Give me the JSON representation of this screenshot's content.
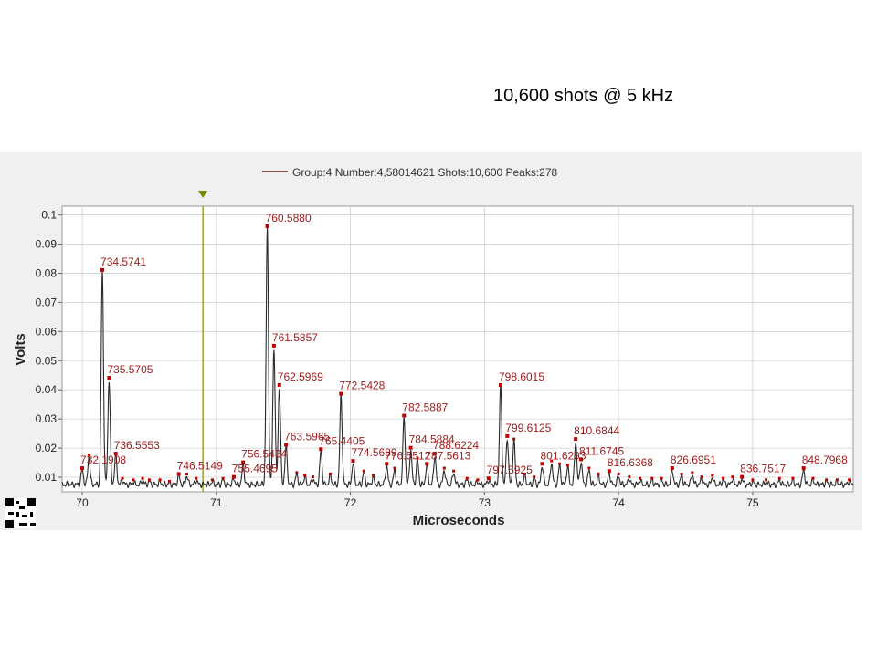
{
  "slide": {
    "title": "10,600 shots @ 5 kHz"
  },
  "legend": {
    "label": "Group:4 Number:4,58014621 Shots:10,600 Peaks:278"
  },
  "colors": {
    "trace": "#2b2b2b",
    "peak_label": "#9b1c1c",
    "marker": "#c00000",
    "cursor": "#8a8a00",
    "grid": "#d0d0d0",
    "panel": "#f0f0f0"
  },
  "icons": {
    "cursor_marker": "triangle-down-icon",
    "qr": "qr-code-icon"
  },
  "chart_data": {
    "type": "line",
    "xlabel": "Microseconds",
    "ylabel": "Volts",
    "xlim": [
      69.85,
      75.75
    ],
    "ylim": [
      0.005,
      0.103
    ],
    "x_ticks": [
      70,
      71,
      72,
      73,
      74,
      75
    ],
    "y_ticks": [
      0.01,
      0.02,
      0.03,
      0.04,
      0.05,
      0.06,
      0.07,
      0.08,
      0.09,
      0.1
    ],
    "y_tick_labels": [
      "0.01",
      "0.02",
      "0.03",
      "0.04",
      "0.05",
      "0.06",
      "0.07",
      "0.08",
      "0.09",
      "0.1"
    ],
    "grid": true,
    "cursor_x": 70.9,
    "baseline": 0.0075,
    "series": [
      {
        "peaks": [
          {
            "x": 70.0,
            "y": 0.0125,
            "label": "732.1908"
          },
          {
            "x": 70.15,
            "y": 0.0805,
            "label": "734.5741"
          },
          {
            "x": 70.2,
            "y": 0.0435,
            "label": "735.5705"
          },
          {
            "x": 70.25,
            "y": 0.0175,
            "label": "736.5553"
          },
          {
            "x": 70.72,
            "y": 0.0105,
            "label": "746.5149"
          },
          {
            "x": 71.13,
            "y": 0.0095,
            "label": "755.4695"
          },
          {
            "x": 71.2,
            "y": 0.0145,
            "label": "756.5434"
          },
          {
            "x": 71.38,
            "y": 0.0955,
            "label": "760.5880"
          },
          {
            "x": 71.43,
            "y": 0.0545,
            "label": "761.5857"
          },
          {
            "x": 71.47,
            "y": 0.041,
            "label": "762.5969"
          },
          {
            "x": 71.52,
            "y": 0.0205,
            "label": "763.5965"
          },
          {
            "x": 71.78,
            "y": 0.019,
            "label": "765.4405"
          },
          {
            "x": 71.93,
            "y": 0.038,
            "label": "772.5428"
          },
          {
            "x": 72.02,
            "y": 0.015,
            "label": "774.5689"
          },
          {
            "x": 72.27,
            "y": 0.014,
            "label": "776.5512"
          },
          {
            "x": 72.4,
            "y": 0.0305,
            "label": "782.5887"
          },
          {
            "x": 72.45,
            "y": 0.0195,
            "label": "784.5884"
          },
          {
            "x": 72.63,
            "y": 0.0175,
            "label": "788.6224"
          },
          {
            "x": 72.57,
            "y": 0.014,
            "label": "787.5613"
          },
          {
            "x": 73.03,
            "y": 0.009,
            "label": "797.5925"
          },
          {
            "x": 73.12,
            "y": 0.041,
            "label": "798.6015"
          },
          {
            "x": 73.17,
            "y": 0.0235,
            "label": "799.6125"
          },
          {
            "x": 73.43,
            "y": 0.014,
            "label": "801.6293"
          },
          {
            "x": 73.68,
            "y": 0.0225,
            "label": "810.6844"
          },
          {
            "x": 73.72,
            "y": 0.0155,
            "label": "811.6745"
          },
          {
            "x": 73.93,
            "y": 0.0115,
            "label": "816.6368"
          },
          {
            "x": 74.4,
            "y": 0.0125,
            "label": "826.6951"
          },
          {
            "x": 74.92,
            "y": 0.0095,
            "label": "836.7517"
          },
          {
            "x": 75.38,
            "y": 0.0125,
            "label": "848.7968"
          }
        ],
        "minor_peaks": [
          {
            "x": 70.05,
            "y": 0.017
          },
          {
            "x": 70.3,
            "y": 0.009
          },
          {
            "x": 70.38,
            "y": 0.0085
          },
          {
            "x": 70.45,
            "y": 0.009
          },
          {
            "x": 70.5,
            "y": 0.0085
          },
          {
            "x": 70.58,
            "y": 0.0085
          },
          {
            "x": 70.65,
            "y": 0.008
          },
          {
            "x": 70.78,
            "y": 0.0105
          },
          {
            "x": 70.85,
            "y": 0.009
          },
          {
            "x": 70.97,
            "y": 0.0085
          },
          {
            "x": 71.05,
            "y": 0.009
          },
          {
            "x": 71.6,
            "y": 0.011
          },
          {
            "x": 71.66,
            "y": 0.01
          },
          {
            "x": 71.72,
            "y": 0.0095
          },
          {
            "x": 71.85,
            "y": 0.0105
          },
          {
            "x": 72.1,
            "y": 0.0115
          },
          {
            "x": 72.17,
            "y": 0.01
          },
          {
            "x": 72.33,
            "y": 0.0125
          },
          {
            "x": 72.5,
            "y": 0.016
          },
          {
            "x": 72.7,
            "y": 0.0125
          },
          {
            "x": 72.77,
            "y": 0.0115
          },
          {
            "x": 72.87,
            "y": 0.009
          },
          {
            "x": 72.95,
            "y": 0.0085
          },
          {
            "x": 73.22,
            "y": 0.0225
          },
          {
            "x": 73.3,
            "y": 0.0105
          },
          {
            "x": 73.37,
            "y": 0.0095
          },
          {
            "x": 73.5,
            "y": 0.015
          },
          {
            "x": 73.56,
            "y": 0.014
          },
          {
            "x": 73.62,
            "y": 0.0135
          },
          {
            "x": 73.78,
            "y": 0.0125
          },
          {
            "x": 73.85,
            "y": 0.0105
          },
          {
            "x": 74.0,
            "y": 0.0105
          },
          {
            "x": 74.08,
            "y": 0.0095
          },
          {
            "x": 74.16,
            "y": 0.009
          },
          {
            "x": 74.25,
            "y": 0.009
          },
          {
            "x": 74.32,
            "y": 0.009
          },
          {
            "x": 74.47,
            "y": 0.0105
          },
          {
            "x": 74.55,
            "y": 0.011
          },
          {
            "x": 74.62,
            "y": 0.0095
          },
          {
            "x": 74.7,
            "y": 0.01
          },
          {
            "x": 74.78,
            "y": 0.009
          },
          {
            "x": 74.85,
            "y": 0.0095
          },
          {
            "x": 75.0,
            "y": 0.0085
          },
          {
            "x": 75.1,
            "y": 0.0085
          },
          {
            "x": 75.2,
            "y": 0.009
          },
          {
            "x": 75.3,
            "y": 0.009
          },
          {
            "x": 75.45,
            "y": 0.009
          },
          {
            "x": 75.55,
            "y": 0.0085
          },
          {
            "x": 75.63,
            "y": 0.0085
          },
          {
            "x": 75.72,
            "y": 0.0085
          }
        ]
      }
    ]
  }
}
